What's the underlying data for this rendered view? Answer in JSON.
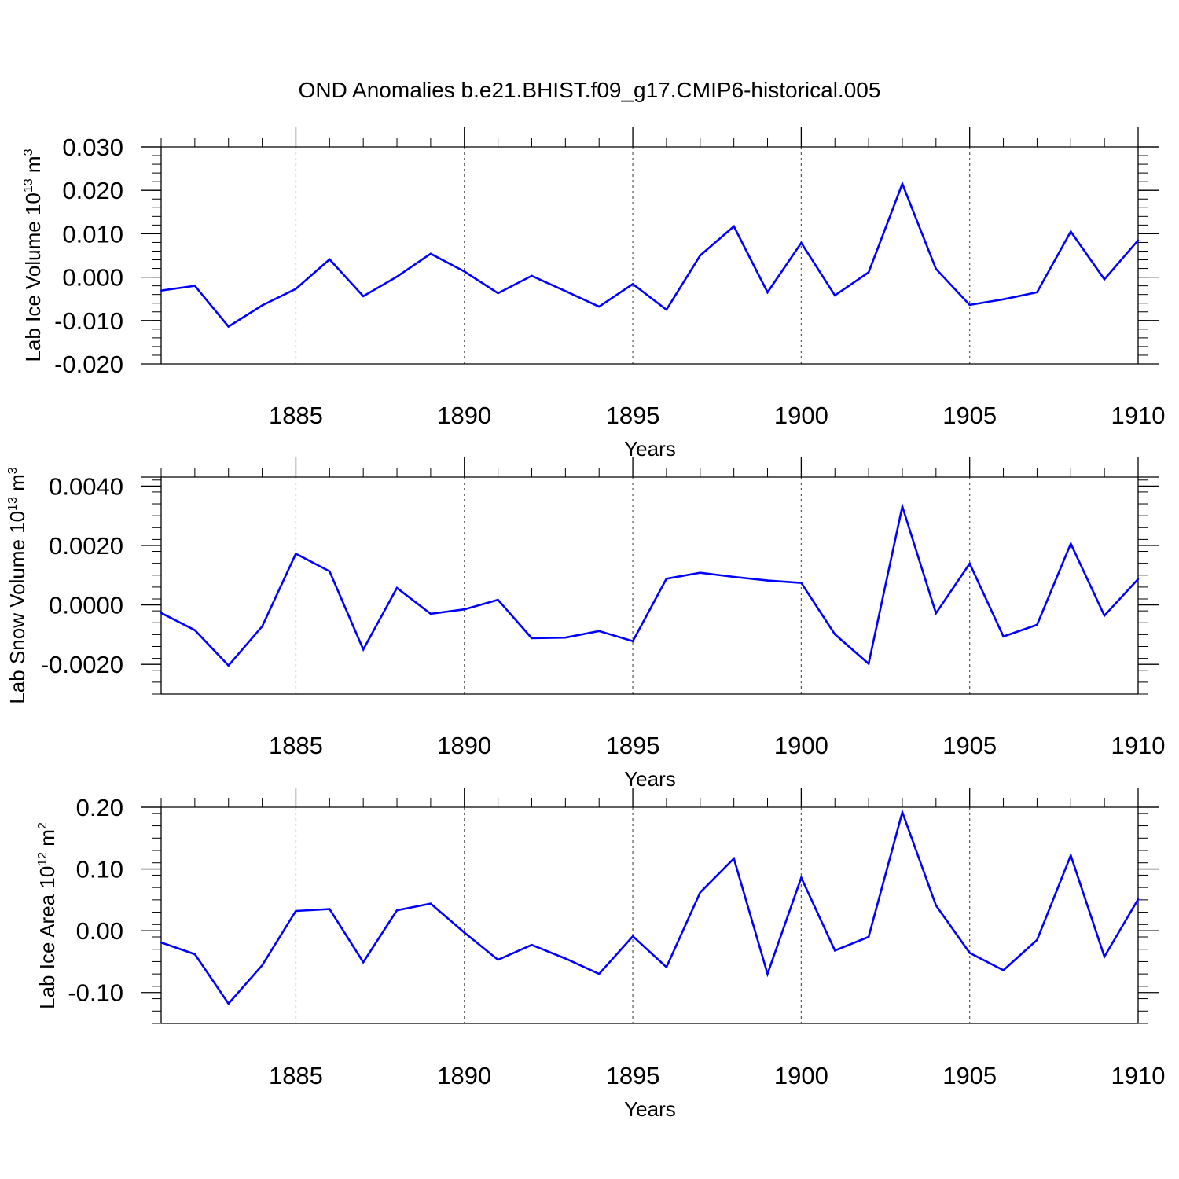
{
  "title": "OND Anomalies b.e21.BHIST.f09_g17.CMIP6-historical.005",
  "colors": {
    "line": "#0000ff",
    "axis": "#000000",
    "grid": "#555555",
    "background": "#ffffff"
  },
  "chart_data": [
    {
      "type": "line",
      "ylabel_main": "Lab Ice Volume 10",
      "ylabel_exp": "13",
      "ylabel_unit": "m",
      "ylabel_unit_exp": "3",
      "xlabel": "Years",
      "xlim": [
        1881,
        1910
      ],
      "ylim": [
        -0.02,
        0.03
      ],
      "yticks": [
        "0.030",
        "0.020",
        "0.010",
        "0.000",
        "-0.010",
        "-0.020"
      ],
      "ytick_values": [
        0.03,
        0.02,
        0.01,
        0.0,
        -0.01,
        -0.02
      ],
      "xticks": [
        "1885",
        "1890",
        "1895",
        "1900",
        "1905",
        "1910"
      ],
      "xtick_values": [
        1885,
        1890,
        1895,
        1900,
        1905,
        1910
      ],
      "x": [
        1881,
        1882,
        1883,
        1884,
        1885,
        1886,
        1887,
        1888,
        1889,
        1890,
        1891,
        1892,
        1893,
        1894,
        1895,
        1896,
        1897,
        1898,
        1899,
        1900,
        1901,
        1902,
        1903,
        1904,
        1905,
        1906,
        1907,
        1908,
        1909,
        1910
      ],
      "values": [
        -0.0031,
        -0.002,
        -0.0114,
        -0.0065,
        -0.0027,
        0.0041,
        -0.0044,
        0.0001,
        0.0054,
        0.0013,
        -0.0037,
        0.0003,
        -0.0032,
        -0.0068,
        -0.0016,
        -0.0075,
        0.005,
        0.0117,
        -0.0035,
        0.0079,
        -0.0042,
        0.0011,
        0.0215,
        0.0019,
        -0.0064,
        -0.0051,
        -0.0035,
        0.0105,
        -0.0005,
        0.0085
      ]
    },
    {
      "type": "line",
      "ylabel_main": "Lab Snow Volume 10",
      "ylabel_exp": "13",
      "ylabel_unit": "m",
      "ylabel_unit_exp": "3",
      "xlabel": "Years",
      "xlim": [
        1881,
        1910
      ],
      "ylim": [
        -0.003,
        0.0043
      ],
      "yticks": [
        "0.0040",
        "0.0020",
        "0.0000",
        "-0.0020"
      ],
      "ytick_values": [
        0.004,
        0.002,
        0.0,
        -0.002
      ],
      "xticks": [
        "1885",
        "1890",
        "1895",
        "1900",
        "1905",
        "1910"
      ],
      "xtick_values": [
        1885,
        1890,
        1895,
        1900,
        1905,
        1910
      ],
      "x": [
        1881,
        1882,
        1883,
        1884,
        1885,
        1886,
        1887,
        1888,
        1889,
        1890,
        1891,
        1892,
        1893,
        1894,
        1895,
        1896,
        1897,
        1898,
        1899,
        1900,
        1901,
        1902,
        1903,
        1904,
        1905,
        1906,
        1907,
        1908,
        1909,
        1910
      ],
      "values": [
        -0.00027,
        -0.00085,
        -0.00204,
        -0.00072,
        0.00172,
        0.00113,
        -0.0015,
        0.00057,
        -0.0003,
        -0.00015,
        0.00017,
        -0.00112,
        -0.0011,
        -0.00088,
        -0.00122,
        0.00088,
        0.00108,
        0.00094,
        0.00082,
        0.00074,
        -0.00099,
        -0.00198,
        0.00331,
        -0.00028,
        0.00139,
        -0.00106,
        -0.00067,
        0.00206,
        -0.00036,
        0.00087
      ]
    },
    {
      "type": "line",
      "ylabel_main": "Lab Ice Area 10",
      "ylabel_exp": "12",
      "ylabel_unit": "m",
      "ylabel_unit_exp": "2",
      "xlabel": "Years",
      "xlim": [
        1881,
        1910
      ],
      "ylim": [
        -0.15,
        0.2
      ],
      "yticks": [
        "0.20",
        "0.10",
        "0.00",
        "-0.10"
      ],
      "ytick_values": [
        0.2,
        0.1,
        0.0,
        -0.1
      ],
      "xticks": [
        "1885",
        "1890",
        "1895",
        "1900",
        "1905",
        "1910"
      ],
      "xtick_values": [
        1885,
        1890,
        1895,
        1900,
        1905,
        1910
      ],
      "x": [
        1881,
        1882,
        1883,
        1884,
        1885,
        1886,
        1887,
        1888,
        1889,
        1890,
        1891,
        1892,
        1893,
        1894,
        1895,
        1896,
        1897,
        1898,
        1899,
        1900,
        1901,
        1902,
        1903,
        1904,
        1905,
        1906,
        1907,
        1908,
        1909,
        1910
      ],
      "values": [
        -0.019,
        -0.038,
        -0.118,
        -0.056,
        0.032,
        0.035,
        -0.051,
        0.033,
        0.044,
        -0.003,
        -0.047,
        -0.023,
        -0.045,
        -0.07,
        -0.009,
        -0.059,
        0.062,
        0.117,
        -0.07,
        0.086,
        -0.032,
        -0.01,
        0.192,
        0.041,
        -0.036,
        -0.064,
        -0.015,
        0.122,
        -0.042,
        0.051
      ]
    }
  ]
}
